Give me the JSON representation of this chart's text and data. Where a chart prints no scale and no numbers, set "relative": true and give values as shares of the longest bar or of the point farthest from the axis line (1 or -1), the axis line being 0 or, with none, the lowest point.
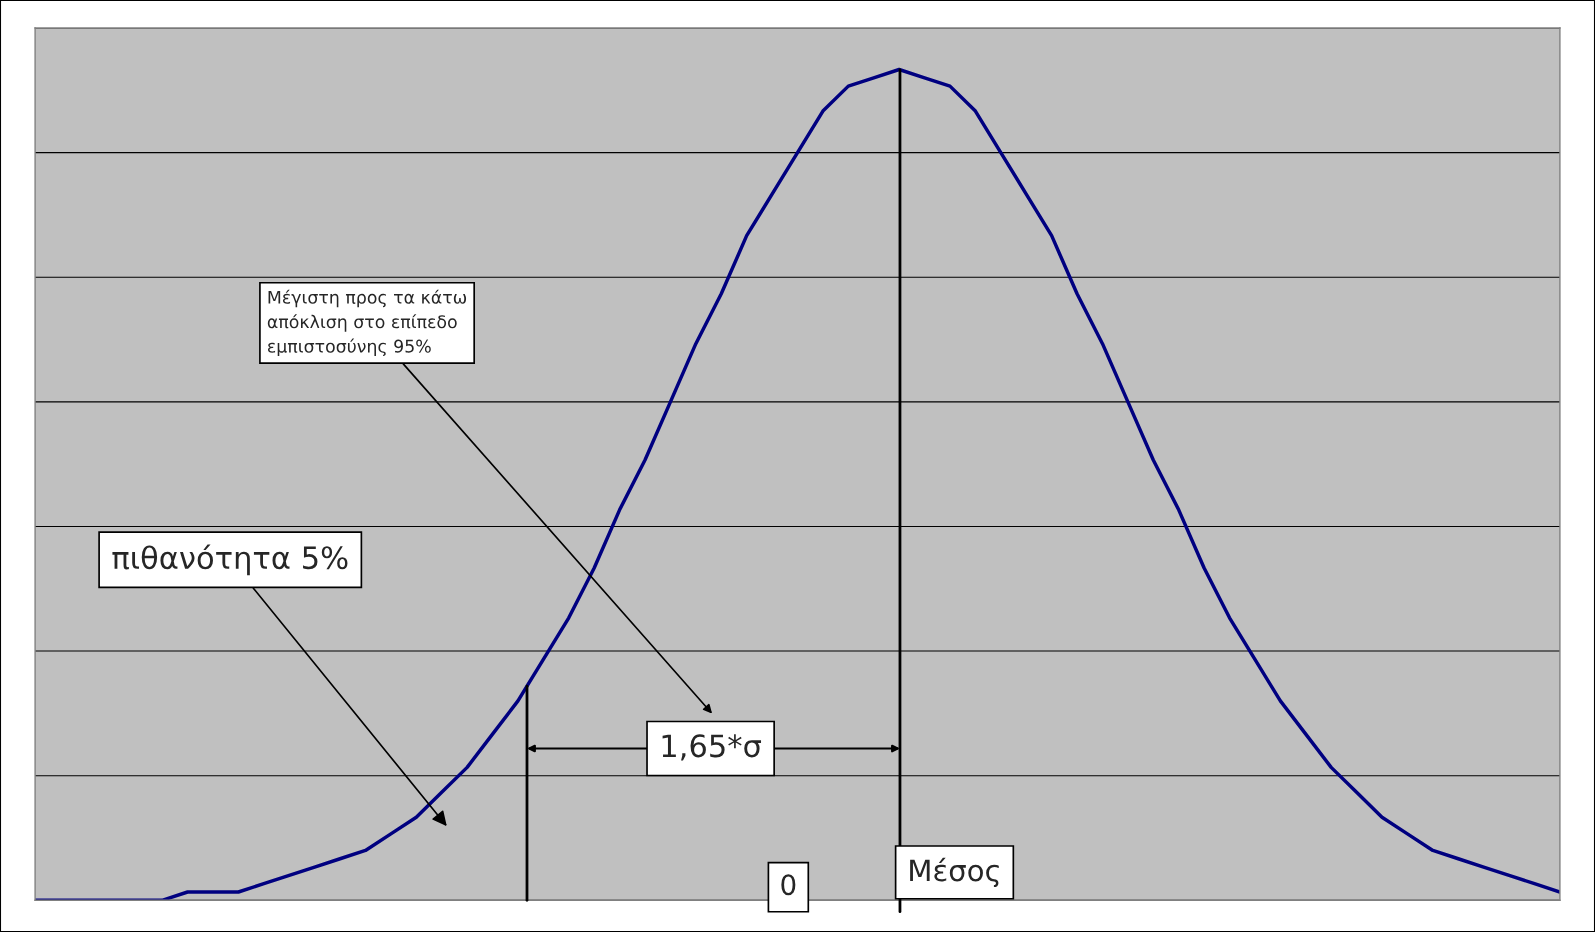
{
  "chart_data": {
    "type": "line",
    "categories": [
      null,
      null,
      null,
      null,
      null,
      null,
      null,
      null,
      null,
      null,
      null,
      null,
      null,
      null,
      null,
      null,
      null,
      null,
      null,
      null,
      null,
      null,
      null,
      null,
      null,
      null,
      null,
      null,
      null,
      null,
      null,
      null,
      null,
      null,
      null,
      null,
      null,
      null,
      null,
      null,
      null,
      null,
      null,
      null,
      null,
      null,
      null,
      null,
      null,
      null,
      null,
      null,
      null,
      null,
      null,
      null,
      null,
      null,
      null,
      null,
      null
    ],
    "values": [
      0.0,
      0.0,
      0.0,
      0.0,
      0.0,
      0.0,
      0.01,
      0.01,
      0.01,
      0.02,
      0.03,
      0.04,
      0.05,
      0.06,
      0.08,
      0.1,
      0.13,
      0.16,
      0.2,
      0.24,
      0.29,
      0.34,
      0.4,
      0.47,
      0.53,
      0.6,
      0.67,
      0.73,
      0.8,
      0.85,
      0.9,
      0.95,
      0.98,
      0.99,
      1.0,
      0.99,
      0.98,
      0.95,
      0.9,
      0.85,
      0.8,
      0.73,
      0.67,
      0.6,
      0.53,
      0.47,
      0.4,
      0.34,
      0.29,
      0.24,
      0.2,
      0.16,
      0.13,
      0.1,
      0.08,
      0.06,
      0.05,
      0.04,
      0.03,
      0.02,
      0.01
    ],
    "color": "#000080",
    "relative": true,
    "grid": "y",
    "annotations": [
      "Μέγιστη προς τα κάτω\nαπόκλιση στο επίπεδο\nεμπιστοσύνης 95%",
      "πιθανότητα 5%",
      "1,65*σ",
      "0",
      "Μέσος"
    ]
  }
}
